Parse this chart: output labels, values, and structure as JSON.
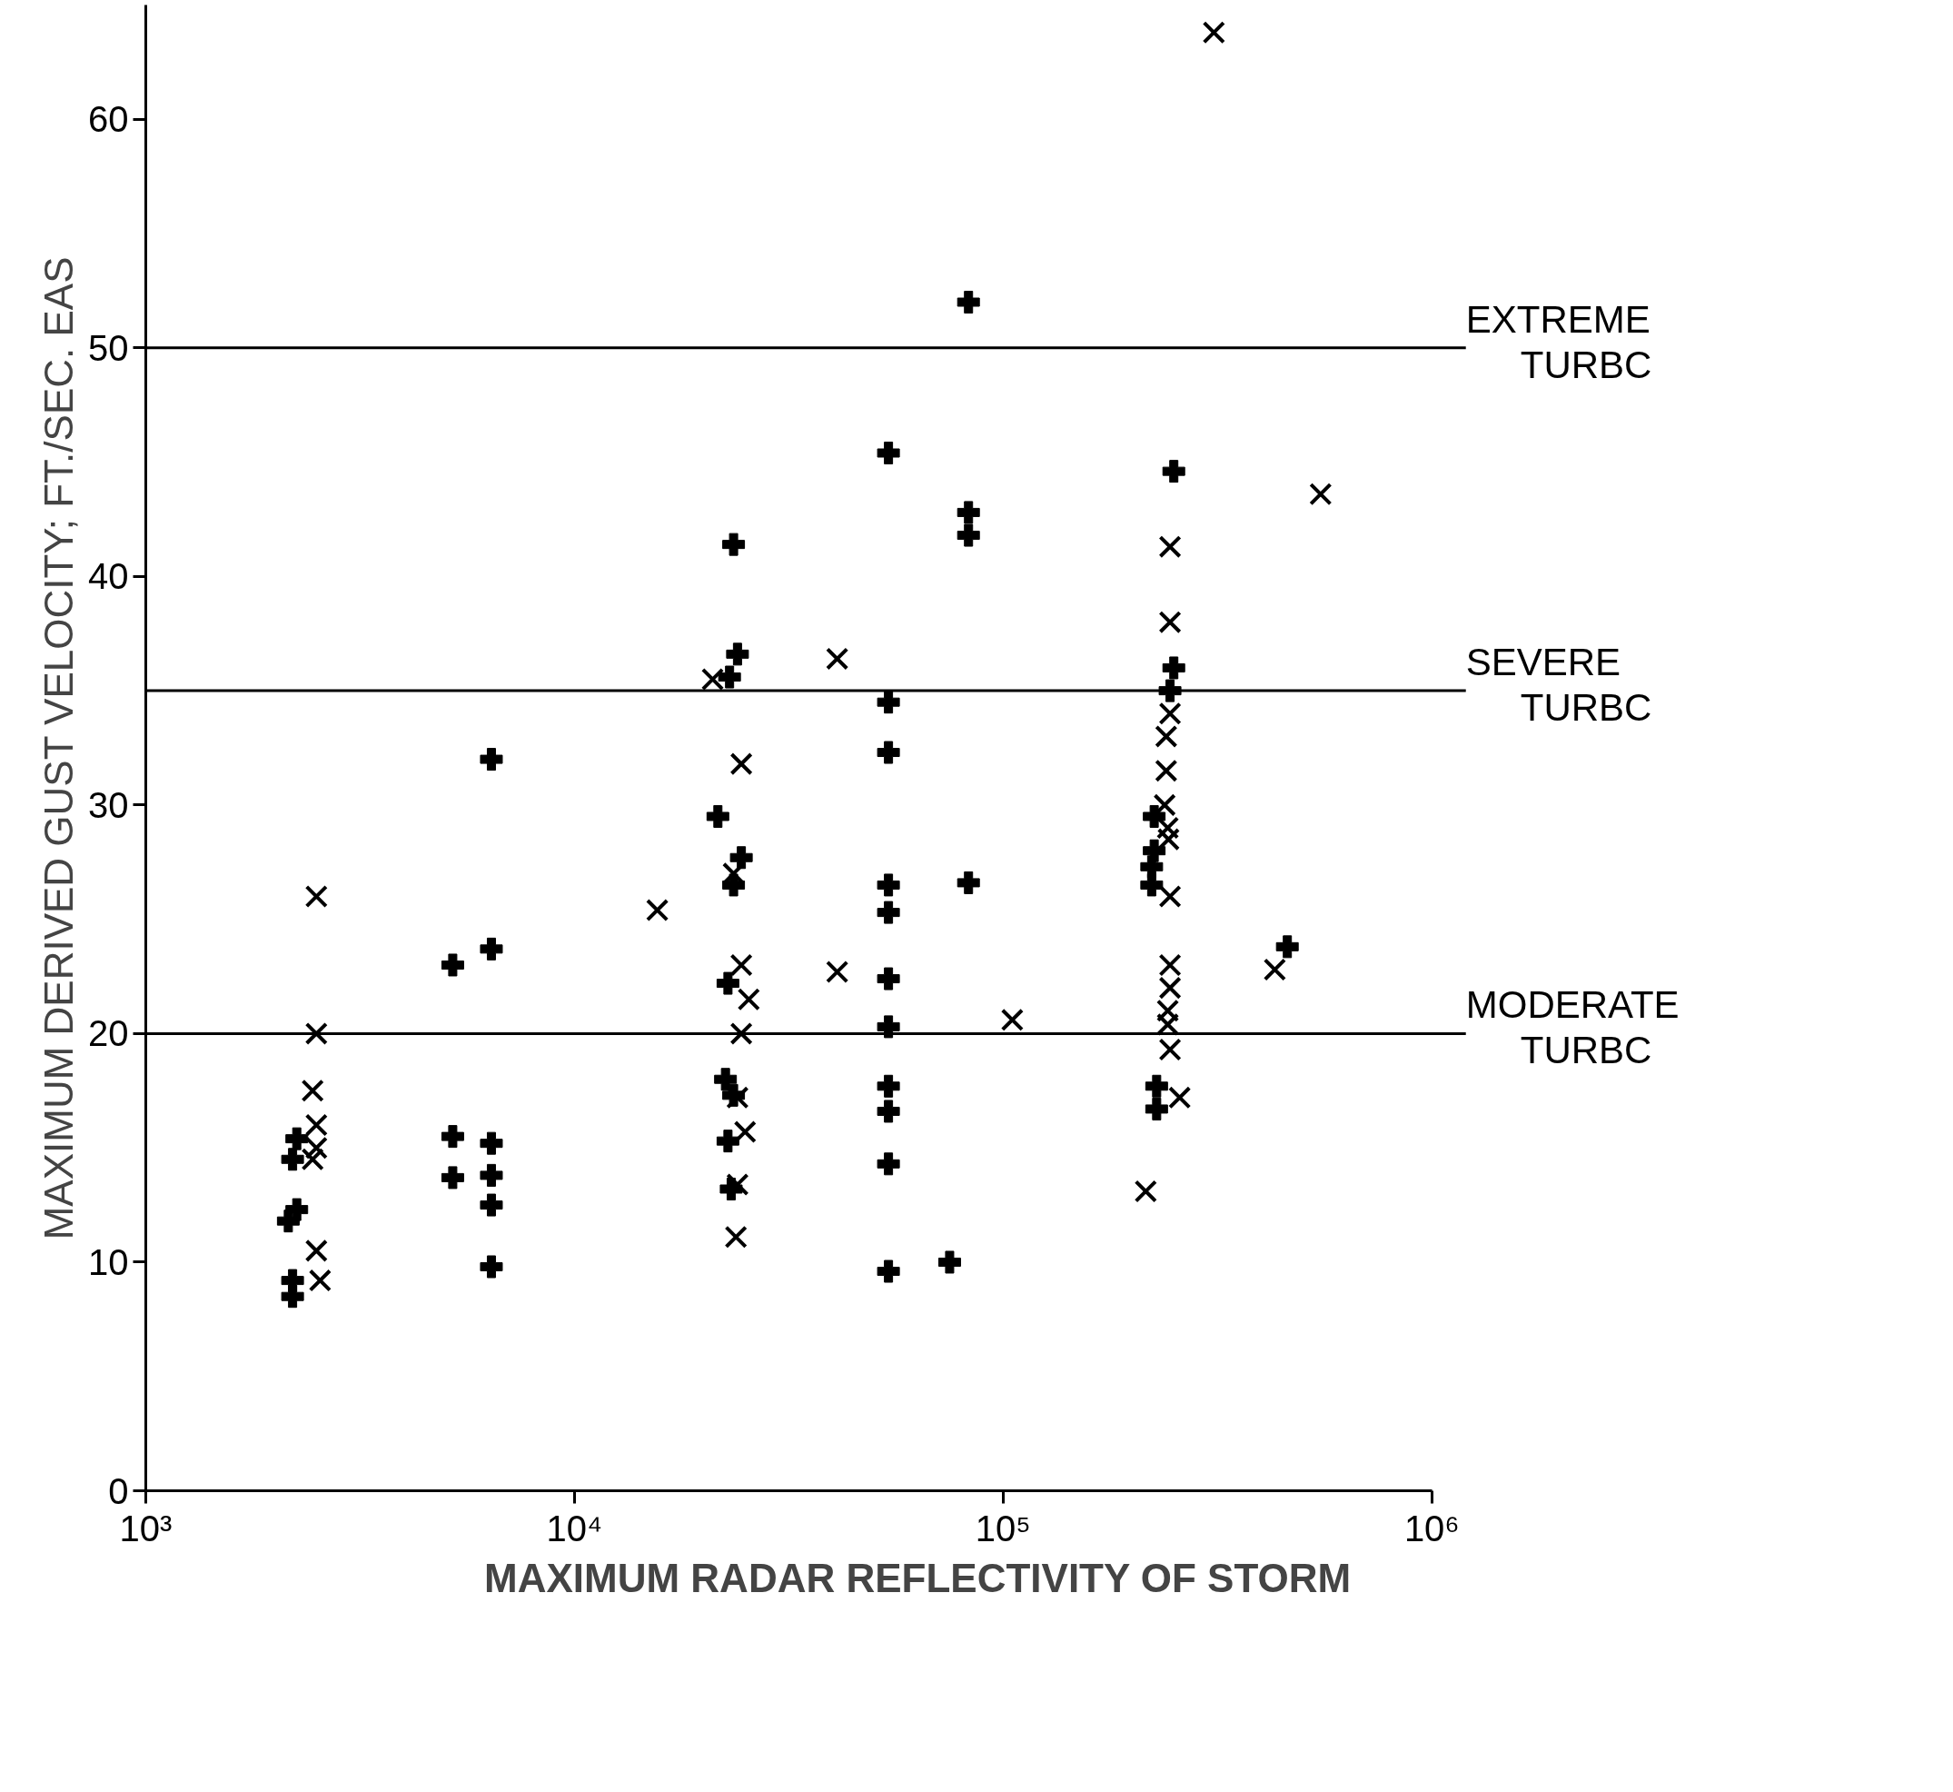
{
  "chart_data": {
    "type": "scatter",
    "xlabel": "MAXIMUM RADAR REFLECTIVITY OF STORM",
    "ylabel": "MAXIMUM DERIVED GUST VELOCITY; FT./SEC. EAS",
    "log": "x",
    "grid": false,
    "xlim": [
      1000,
      1000000
    ],
    "xticks": [
      {
        "value": 1000,
        "label": "10³"
      },
      {
        "value": 10000,
        "label": "10⁴"
      },
      {
        "value": 100000,
        "label": "10⁵"
      },
      {
        "value": 1000000,
        "label": "10⁶"
      }
    ],
    "ylim": [
      0,
      65
    ],
    "yticks": [
      0,
      10,
      20,
      30,
      40,
      50,
      60
    ],
    "ref_lines": [
      {
        "axis": "y",
        "value": 50,
        "label": "EXTREME TURBC",
        "color": "#000000"
      },
      {
        "axis": "y",
        "value": 35,
        "label": "SEVERE TURBC",
        "color": "#000000"
      },
      {
        "axis": "y",
        "value": 20,
        "label": "MODERATE TURBC",
        "color": "#000000"
      }
    ],
    "series": [
      {
        "color": "#000000",
        "marker": "cross",
        "x": [
          2200,
          2200,
          2150,
          2250,
          2200,
          2250,
          5200,
          5200,
          5200,
          6400,
          6400,
          6400,
          6400,
          6400,
          6400,
          21600,
          23500,
          24000,
          23000,
          24500,
          23500,
          22800,
          22500,
          23500,
          22800,
          23200,
          54000,
          54000,
          54000,
          54000,
          54000,
          54000,
          54000,
          54000,
          54000,
          54000,
          54000,
          83000,
          83000,
          83000,
          83000,
          75000,
          250000,
          250000,
          245000,
          225000,
          225000,
          222000,
          222000,
          228000,
          228000,
          460000
        ],
        "values": [
          8.5,
          9.2,
          11.8,
          12.3,
          14.5,
          15.4,
          23,
          15.5,
          13.7,
          32,
          23.7,
          15.2,
          13.8,
          12.5,
          9.8,
          29.5,
          41.4,
          36.6,
          35.6,
          27.7,
          26.5,
          22.2,
          18,
          17.3,
          15.3,
          13.2,
          45.4,
          34.5,
          32.3,
          26.5,
          25.3,
          22.4,
          20.3,
          17.7,
          16.6,
          14.3,
          9.6,
          52,
          42.8,
          41.8,
          26.6,
          10,
          44.6,
          36,
          35,
          29.5,
          28,
          27.3,
          26.5,
          17.7,
          16.7,
          23.8
        ]
      },
      {
        "color": "#000000",
        "marker": "x",
        "x": [
          2500,
          2500,
          2450,
          2500,
          2500,
          2450,
          2500,
          2550,
          15600,
          21000,
          24500,
          23500,
          24500,
          25500,
          24500,
          24000,
          25000,
          24000,
          23800,
          41000,
          41000,
          105000,
          245000,
          245000,
          245000,
          240000,
          240000,
          238000,
          242000,
          243000,
          245000,
          245000,
          245000,
          242000,
          242000,
          245000,
          258000,
          215000,
          310000,
          430000,
          550000
        ],
        "values": [
          26,
          20,
          17.5,
          16,
          15,
          14.5,
          10.5,
          9.2,
          25.4,
          35.5,
          31.8,
          27,
          23,
          21.5,
          20,
          17.2,
          15.7,
          13.4,
          11.1,
          36.4,
          22.7,
          20.6,
          41.3,
          38,
          34,
          33,
          31.5,
          30,
          29,
          28.5,
          26,
          23,
          22,
          21,
          20.4,
          19.3,
          17.2,
          13.1,
          63.8,
          22.8,
          43.6
        ]
      }
    ]
  }
}
